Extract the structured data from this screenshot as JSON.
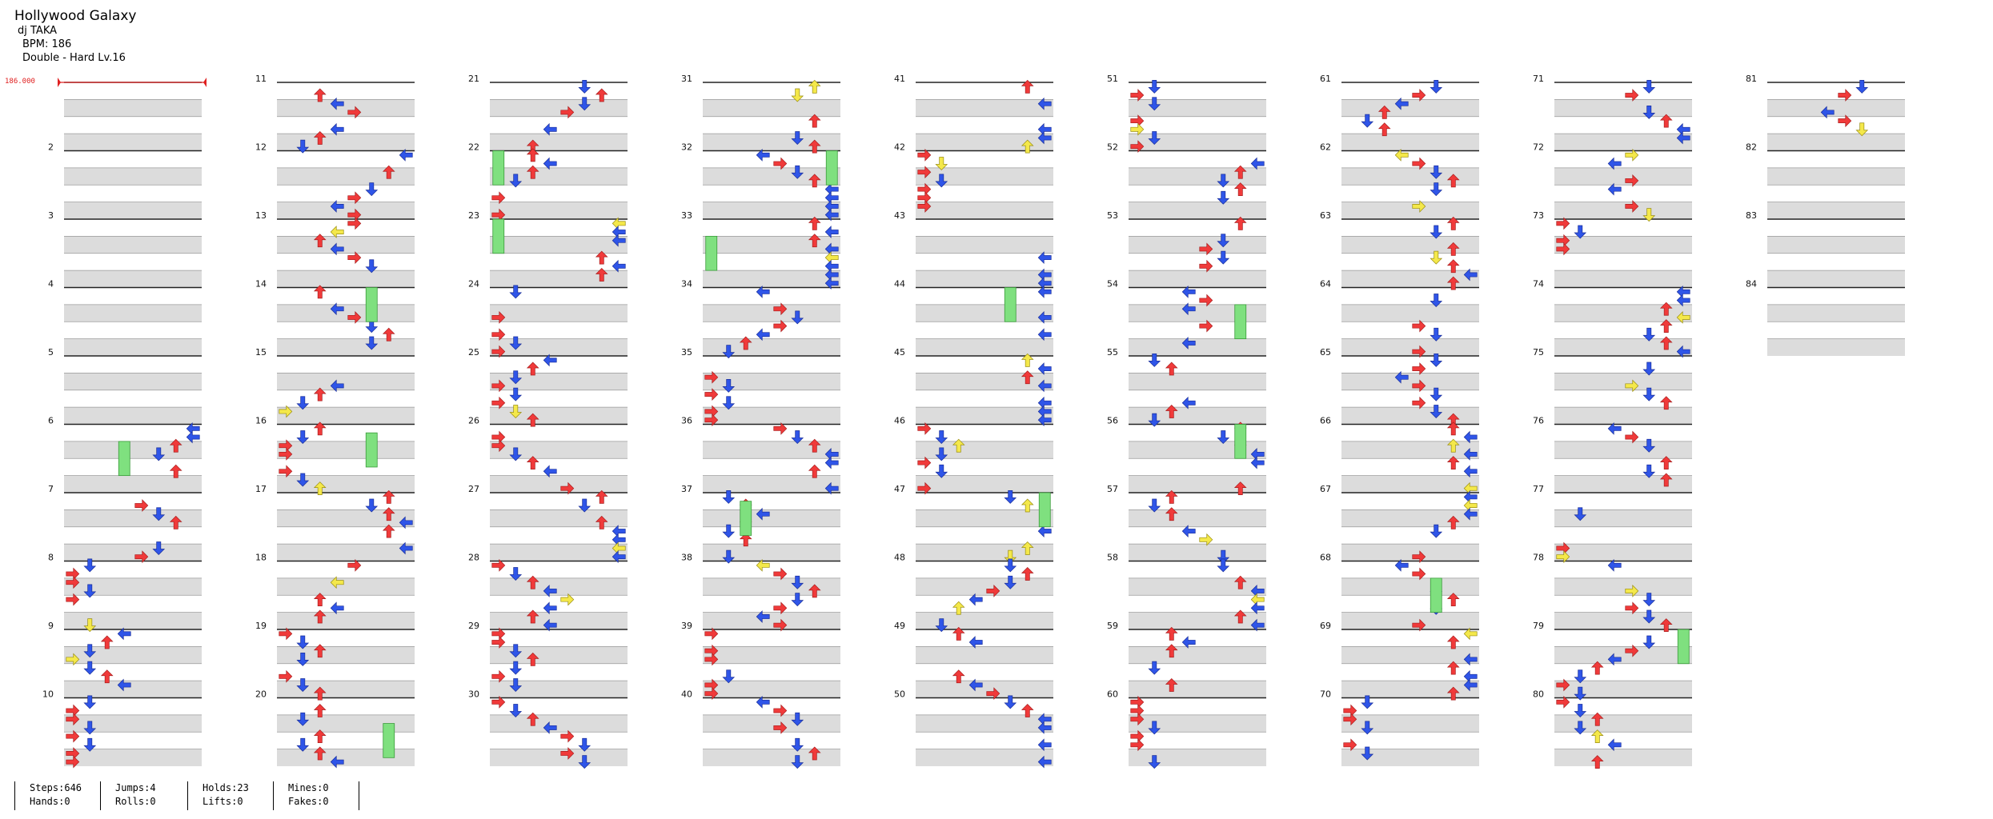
{
  "song": {
    "title": "Hollywood Galaxy",
    "artist": "dj TAKA",
    "bpm_line": "BPM: 186",
    "difficulty_line": "Double - Hard Lv.16"
  },
  "bpm_marker": "186.000",
  "measure_numbers": [
    "2",
    "3",
    "4",
    "5",
    "6",
    "7",
    "8",
    "9",
    "10",
    "11",
    "12",
    "13",
    "14",
    "15",
    "16",
    "17",
    "18",
    "19",
    "20",
    "21",
    "22",
    "23",
    "24",
    "25",
    "26",
    "27",
    "28",
    "29",
    "30",
    "31",
    "32",
    "33",
    "34",
    "35",
    "36",
    "37",
    "38",
    "39",
    "40",
    "41",
    "42",
    "43",
    "44",
    "45",
    "46",
    "47",
    "48",
    "49",
    "50",
    "51",
    "52",
    "53",
    "54",
    "55",
    "56",
    "57",
    "58",
    "59",
    "60",
    "61",
    "62",
    "63",
    "64",
    "65",
    "66",
    "67",
    "68",
    "69",
    "70",
    "71",
    "72",
    "73",
    "74",
    "75",
    "76",
    "77",
    "78",
    "79",
    "80",
    "81",
    "82",
    "83",
    "84"
  ],
  "stats": {
    "steps": "Steps:646",
    "hands": "Hands:0",
    "jumps": "Jumps:4",
    "rolls": "Rolls:0",
    "holds": "Holds:23",
    "lifts": "Lifts:0",
    "mines": "Mines:0",
    "fakes": "Fakes:0"
  },
  "colors": {
    "red_arrow": "#f03a3a",
    "blue_arrow": "#2f55e8",
    "yellow_arrow": "#f4e84a",
    "hold_green": "#7fe07f",
    "stripe": "#dcdcdc",
    "bpm_line": "#e02020"
  }
}
